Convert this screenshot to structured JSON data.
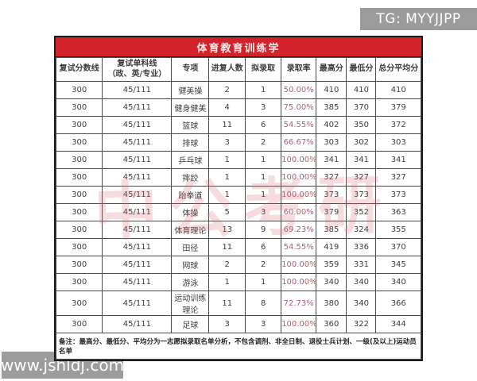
{
  "watermarks": {
    "top_right": "TG: MYYJJPP",
    "bottom_left": "www.jshldj.com",
    "center_stamp": "中公考研"
  },
  "colors": {
    "title_bar_red": "#d2232b",
    "rate_text": "#b0606a",
    "badge_gray": "#9c9c9c",
    "stamp_pink": "#d96670"
  },
  "table": {
    "title": "体育教育训练学",
    "columns": [
      {
        "l1": "复试分数线"
      },
      {
        "l1": "复试单科线",
        "l2": "（政、英/专业）"
      },
      {
        "l1": "专项"
      },
      {
        "l1": "进复人数"
      },
      {
        "l1": "拟录取"
      },
      {
        "l1": "录取率"
      },
      {
        "l1": "最高分"
      },
      {
        "l1": "最低分"
      },
      {
        "l1": "总分平均分"
      }
    ],
    "rows": [
      [
        "300",
        "45/111",
        "健美操",
        "2",
        "1",
        "50.00%",
        "410",
        "410",
        "410"
      ],
      [
        "300",
        "45/111",
        "健身健美",
        "4",
        "3",
        "75.00%",
        "385",
        "370",
        "379"
      ],
      [
        "300",
        "45/111",
        "篮球",
        "11",
        "6",
        "54.55%",
        "402",
        "350",
        "372"
      ],
      [
        "300",
        "45/111",
        "排球",
        "3",
        "2",
        "66.67%",
        "303",
        "302",
        "303"
      ],
      [
        "300",
        "45/111",
        "乒乓球",
        "1",
        "1",
        "100.00%",
        "341",
        "341",
        "341"
      ],
      [
        "300",
        "45/111",
        "摔跤",
        "1",
        "1",
        "100.00%",
        "327",
        "327",
        "327"
      ],
      [
        "300",
        "45/111",
        "跆拳道",
        "1",
        "1",
        "100.00%",
        "373",
        "373",
        "373"
      ],
      [
        "300",
        "45/111",
        "体操",
        "5",
        "3",
        "60.00%",
        "379",
        "352",
        "363"
      ],
      [
        "300",
        "45/111",
        "体育理论",
        "13",
        "9",
        "69.23%",
        "385",
        "324",
        "355"
      ],
      [
        "300",
        "45/111",
        "田径",
        "11",
        "6",
        "54.55%",
        "419",
        "336",
        "370"
      ],
      [
        "300",
        "45/111",
        "网球",
        "2",
        "2",
        "100.00%",
        "359",
        "331",
        "345"
      ],
      [
        "300",
        "45/111",
        "游泳",
        "1",
        "1",
        "100.00%",
        "340",
        "340",
        "340"
      ],
      [
        "300",
        "45/111",
        "运动训练理论",
        "11",
        "8",
        "72.73%",
        "380",
        "340",
        "366"
      ],
      [
        "300",
        "45/111",
        "足球",
        "3",
        "3",
        "100.00%",
        "360",
        "322",
        "344"
      ]
    ],
    "rate_column_index": 5,
    "note": "备注：最高分、最低分、平均分为一志愿拟录取名单分析，不包含调剂、非全日制、退役士兵计划、一级(及以上)运动员名单"
  }
}
